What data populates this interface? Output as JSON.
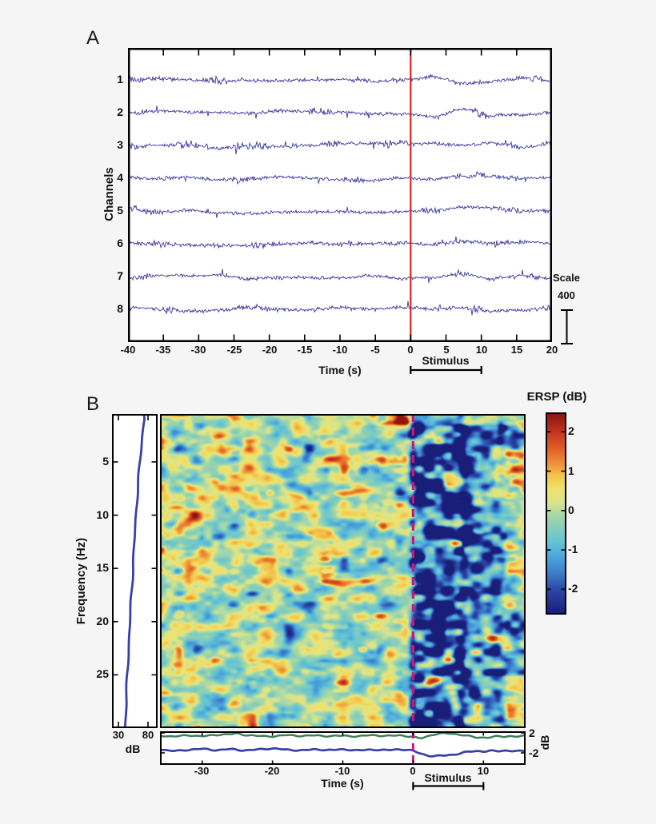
{
  "figure": {
    "background": "#f5f5f5",
    "panel_a": {
      "label": "A",
      "ylabel": "Channels",
      "xlabel": "Time (s)",
      "channel_labels": [
        "1",
        "2",
        "3",
        "4",
        "5",
        "6",
        "7",
        "8"
      ],
      "x_tick_labels": [
        "-40",
        "-35",
        "-30",
        "-25",
        "-20",
        "-15",
        "-10",
        "-5",
        "0",
        "5",
        "10",
        "15",
        "20"
      ],
      "stimulus_label": "Stimulus",
      "scale_title": "Scale",
      "scale_value": "400",
      "trace_color": "#30309a",
      "event_line_color": "#de2525"
    },
    "panel_b": {
      "label": "B",
      "ylabel": "Frequency (Hz)",
      "xlabel": "Time (s)",
      "freq_tick_labels": [
        "5",
        "10",
        "15",
        "20",
        "25"
      ],
      "x_tick_labels": [
        "-30",
        "-20",
        "-10",
        "0",
        "10"
      ],
      "spectrum_x_tick_labels": [
        "30",
        "80"
      ],
      "spectrum_x_unit": "dB",
      "erp_y_tick_labels": [
        "2",
        "-2"
      ],
      "erp_y_unit": "dB",
      "stimulus_label": "Stimulus",
      "colorbar_title": "ERSP (dB)",
      "colorbar_tick_labels": [
        "2",
        "1",
        "0",
        "-1",
        "-2"
      ],
      "dashed_line_color": "#c9187a",
      "spectrum_color": "#3a3fa8",
      "erp_upper_color": "#3f7f58",
      "erp_lower_color": "#3a3fa8"
    }
  },
  "chart_data": [
    {
      "id": "eeg-channel-traces",
      "type": "line",
      "channels": [
        1,
        2,
        3,
        4,
        5,
        6,
        7,
        8
      ],
      "x_range_s": [
        -40,
        20
      ],
      "x_tick_step_s": 5,
      "event_time_s": 0,
      "stimulus_window_s": [
        0,
        10
      ],
      "amplitude_scale_bar": 400,
      "noise_seed": 7
    },
    {
      "id": "ersp-spectrogram",
      "type": "heatmap",
      "x_range_s": [
        -36,
        16
      ],
      "y_range_hz": [
        0.5,
        30
      ],
      "z_range_db": [
        -2.6,
        2.45
      ],
      "colormap": "jet",
      "x_ticks_s": [
        -30,
        -20,
        -10,
        0,
        10
      ],
      "y_ticks_hz": [
        5,
        10,
        15,
        20,
        25
      ],
      "colorbar_ticks_db": [
        2,
        1,
        0,
        -1,
        -2
      ],
      "event_time_s": 0,
      "stimulus_window_s": [
        0,
        10
      ],
      "noise_seed": 11,
      "baseline_mean_db": -0.12,
      "colormap_stops": [
        [
          2.45,
          "#8b1610"
        ],
        [
          2.0,
          "#c23322"
        ],
        [
          1.6,
          "#e05a26"
        ],
        [
          1.2,
          "#ef9038"
        ],
        [
          0.9,
          "#f3c24a"
        ],
        [
          0.55,
          "#f0e26a"
        ],
        [
          0.2,
          "#d8e48c"
        ],
        [
          -0.1,
          "#a8d8a8"
        ],
        [
          -0.35,
          "#8fd0b4"
        ],
        [
          -0.8,
          "#64c4d4"
        ],
        [
          -1.2,
          "#4aa4dc"
        ],
        [
          -1.6,
          "#3c7cc8"
        ],
        [
          -2.0,
          "#2c48a8"
        ],
        [
          -2.6,
          "#191e78"
        ]
      ],
      "features": [
        {
          "name": "post-stimulus desynchronization",
          "t_range_s": [
            0.2,
            6.8
          ],
          "f_range_hz": [
            1,
            30
          ],
          "peak_db": -2.9
        },
        {
          "name": "late desynchronization streaks",
          "t_range_s": [
            6.8,
            12.5
          ],
          "f_range_hz": [
            2,
            30
          ],
          "peak_db": -1.9
        },
        {
          "name": "post-onset baseline shift",
          "t_range_s": [
            0.5,
            12
          ],
          "f_range_hz": [
            1,
            30
          ],
          "peak_db": -0.5
        },
        {
          "name": "top-edge synchronization streak",
          "t_range_s": [
            -4,
            15
          ],
          "f_range_hz": [
            0.5,
            1.25
          ],
          "peak_db": 2.6
        },
        {
          "name": "right-edge low-frequency blob",
          "t_range_s": [
            12.5,
            16.5
          ],
          "f_range_hz": [
            0.8,
            3.5
          ],
          "peak_db": -2.4
        },
        {
          "name": "right-edge beta blob",
          "t_range_s": [
            13.5,
            16.5
          ],
          "f_range_hz": [
            19.5,
            22.5
          ],
          "peak_db": -2.3
        },
        {
          "name": "right-edge alpha synchronization",
          "t_range_s": [
            12,
            15.5
          ],
          "f_range_hz": [
            4.5,
            8
          ],
          "peak_db": 2.0
        },
        {
          "name": "pre-stimulus synchronization patches",
          "t_range_s": [
            -33,
            -12
          ],
          "f_range_hz": [
            3,
            17
          ],
          "peak_db": 0.55
        }
      ]
    },
    {
      "id": "baseline-power-spectrum",
      "type": "line",
      "x_ticks_db": [
        30,
        80
      ],
      "y_range_hz": [
        0.5,
        30
      ],
      "points_hz_db": [
        [
          0.5,
          72
        ],
        [
          0.9,
          73.5
        ],
        [
          1.5,
          72.5
        ],
        [
          3,
          69.5
        ],
        [
          5,
          66.5
        ],
        [
          8,
          62
        ],
        [
          12,
          57.5
        ],
        [
          16,
          53.5
        ],
        [
          20,
          49.5
        ],
        [
          24,
          46
        ],
        [
          27,
          43.5
        ],
        [
          30,
          41.5
        ]
      ]
    },
    {
      "id": "erp-envelope",
      "type": "line",
      "x_range_s": [
        -36,
        16
      ],
      "y_ticks_db": [
        2,
        -2
      ],
      "series": [
        {
          "name": "upper-envelope",
          "points_s_db": [
            [
              -36,
              1.45
            ],
            [
              -34,
              1.3
            ],
            [
              -32,
              1.5
            ],
            [
              -30,
              1.35
            ],
            [
              -28,
              1.6
            ],
            [
              -26,
              1.75
            ],
            [
              -25,
              1.85
            ],
            [
              -24,
              1.6
            ],
            [
              -22,
              1.4
            ],
            [
              -20,
              1.3
            ],
            [
              -18,
              1.55
            ],
            [
              -16,
              1.4
            ],
            [
              -14,
              1.5
            ],
            [
              -12,
              1.35
            ],
            [
              -10,
              1.45
            ],
            [
              -8,
              1.3
            ],
            [
              -6,
              1.55
            ],
            [
              -4,
              1.4
            ],
            [
              -2,
              1.5
            ],
            [
              -1,
              1.35
            ],
            [
              0,
              1.2
            ],
            [
              1,
              0.95
            ],
            [
              2,
              1.3
            ],
            [
              3,
              1.7
            ],
            [
              4,
              1.85
            ],
            [
              5,
              1.9
            ],
            [
              6,
              1.75
            ],
            [
              7,
              1.6
            ],
            [
              8,
              1.35
            ],
            [
              9,
              1.1
            ],
            [
              10,
              1.05
            ],
            [
              11,
              1.15
            ],
            [
              12,
              1.3
            ],
            [
              13,
              1.25
            ],
            [
              14,
              1.35
            ],
            [
              15,
              1.3
            ],
            [
              16,
              1.4
            ]
          ]
        },
        {
          "name": "lower-envelope",
          "points_s_db": [
            [
              -36,
              -1.3
            ],
            [
              -34,
              -1.6
            ],
            [
              -32,
              -1.4
            ],
            [
              -30,
              -1.2
            ],
            [
              -28,
              -1.45
            ],
            [
              -26,
              -1.25
            ],
            [
              -24,
              -1.5
            ],
            [
              -22,
              -1.3
            ],
            [
              -20,
              -1.15
            ],
            [
              -18,
              -1.35
            ],
            [
              -16,
              -1.5
            ],
            [
              -14,
              -1.3
            ],
            [
              -12,
              -1.45
            ],
            [
              -10,
              -1.3
            ],
            [
              -8,
              -1.5
            ],
            [
              -6,
              -1.35
            ],
            [
              -4,
              -1.45
            ],
            [
              -2,
              -1.3
            ],
            [
              -1,
              -1.4
            ],
            [
              0,
              -1.6
            ],
            [
              1,
              -2.1
            ],
            [
              2,
              -2.5
            ],
            [
              3,
              -2.65
            ],
            [
              4,
              -2.55
            ],
            [
              5,
              -2.45
            ],
            [
              6,
              -2.3
            ],
            [
              7,
              -2.0
            ],
            [
              8,
              -1.75
            ],
            [
              9,
              -1.65
            ],
            [
              10,
              -1.7
            ],
            [
              11,
              -1.6
            ],
            [
              12,
              -1.65
            ],
            [
              13,
              -1.55
            ],
            [
              14,
              -1.6
            ],
            [
              15,
              -1.65
            ],
            [
              16,
              -1.6
            ]
          ]
        }
      ]
    }
  ]
}
